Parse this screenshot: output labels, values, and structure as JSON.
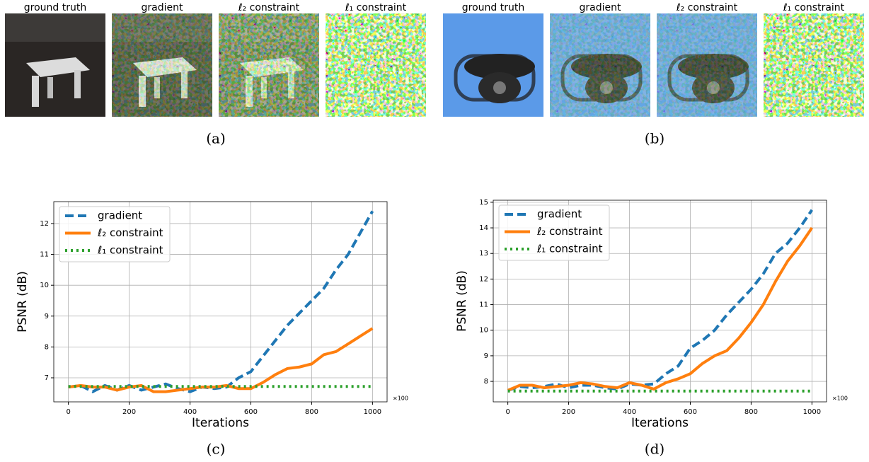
{
  "panels": [
    {
      "caption": "(a)",
      "image_labels": [
        "ground truth",
        "gradient",
        "ℓ₂ constraint",
        "ℓ₁ constraint"
      ]
    },
    {
      "caption": "(b)",
      "image_labels": [
        "ground truth",
        "gradient",
        "ℓ₂ constraint",
        "ℓ₁ constraint"
      ]
    }
  ],
  "chart_data": [
    {
      "type": "line",
      "caption": "(c)",
      "x_label": "Iterations",
      "y_label": "PSNR (dB)",
      "x_offset_label": "×100",
      "x": [
        0,
        40,
        80,
        120,
        160,
        200,
        240,
        280,
        320,
        360,
        400,
        440,
        480,
        520,
        560,
        600,
        640,
        680,
        720,
        760,
        800,
        840,
        880,
        920,
        960,
        1000
      ],
      "series": [
        {
          "name": "gradient",
          "color": "#1f77b4",
          "linestyle": "dashed",
          "values": [
            6.7,
            6.75,
            6.55,
            6.75,
            6.6,
            6.75,
            6.6,
            6.7,
            6.8,
            6.65,
            6.55,
            6.7,
            6.65,
            6.7,
            7.0,
            7.2,
            7.7,
            8.2,
            8.7,
            9.1,
            9.5,
            9.9,
            10.5,
            11.0,
            11.7,
            12.4
          ]
        },
        {
          "name": "ℓ₂ constraint",
          "color": "#ff7f0e",
          "linestyle": "solid",
          "values": [
            6.7,
            6.75,
            6.7,
            6.7,
            6.6,
            6.7,
            6.75,
            6.55,
            6.55,
            6.6,
            6.65,
            6.7,
            6.7,
            6.75,
            6.65,
            6.65,
            6.85,
            7.1,
            7.3,
            7.35,
            7.45,
            7.75,
            7.85,
            8.1,
            8.35,
            8.6
          ]
        },
        {
          "name": "ℓ₁ constraint",
          "color": "#2ca02c",
          "linestyle": "dotted",
          "values": [
            6.72,
            6.72,
            6.72,
            6.72,
            6.72,
            6.72,
            6.72,
            6.72,
            6.72,
            6.72,
            6.72,
            6.72,
            6.72,
            6.72,
            6.72,
            6.72,
            6.72,
            6.72,
            6.72,
            6.72,
            6.72,
            6.72,
            6.72,
            6.72,
            6.72,
            6.72
          ]
        }
      ],
      "xlim": [
        -48,
        1048
      ],
      "xticks": [
        0,
        200,
        400,
        600,
        800,
        1000
      ],
      "ylim": [
        6.22,
        12.71
      ],
      "yticks": [
        7,
        8,
        9,
        10,
        11,
        12
      ],
      "grid": true,
      "legend": "upper left"
    },
    {
      "type": "line",
      "caption": "(d)",
      "x_label": "Iterations",
      "y_label": "PSNR (dB)",
      "x_offset_label": "×100",
      "x": [
        0,
        40,
        80,
        120,
        160,
        200,
        240,
        280,
        320,
        360,
        400,
        440,
        480,
        520,
        560,
        600,
        640,
        680,
        720,
        760,
        800,
        840,
        880,
        920,
        960,
        1000
      ],
      "series": [
        {
          "name": "gradient",
          "color": "#1f77b4",
          "linestyle": "dashed",
          "values": [
            7.65,
            7.8,
            7.75,
            7.8,
            7.9,
            7.75,
            7.85,
            7.85,
            7.75,
            7.7,
            7.9,
            7.85,
            7.9,
            8.3,
            8.6,
            9.3,
            9.6,
            10.0,
            10.6,
            11.1,
            11.6,
            12.2,
            13.0,
            13.4,
            14.0,
            14.7
          ]
        },
        {
          "name": "ℓ₂ constraint",
          "color": "#ff7f0e",
          "linestyle": "solid",
          "values": [
            7.65,
            7.85,
            7.85,
            7.75,
            7.8,
            7.85,
            7.95,
            7.9,
            7.8,
            7.75,
            7.95,
            7.85,
            7.7,
            7.95,
            8.1,
            8.3,
            8.7,
            9.0,
            9.2,
            9.7,
            10.3,
            11.0,
            11.9,
            12.7,
            13.3,
            14.0
          ]
        },
        {
          "name": "ℓ₁ constraint",
          "color": "#2ca02c",
          "linestyle": "dotted",
          "values": [
            7.62,
            7.62,
            7.62,
            7.62,
            7.62,
            7.62,
            7.62,
            7.62,
            7.62,
            7.62,
            7.62,
            7.62,
            7.62,
            7.62,
            7.62,
            7.62,
            7.62,
            7.62,
            7.62,
            7.62,
            7.62,
            7.62,
            7.62,
            7.62,
            7.62,
            7.62
          ]
        }
      ],
      "xlim": [
        -48,
        1048
      ],
      "xticks": [
        0,
        200,
        400,
        600,
        800,
        1000
      ],
      "ylim": [
        7.2,
        15.08
      ],
      "yticks": [
        8,
        9,
        10,
        11,
        12,
        13,
        14,
        15
      ],
      "grid": true,
      "legend": "upper left"
    }
  ]
}
